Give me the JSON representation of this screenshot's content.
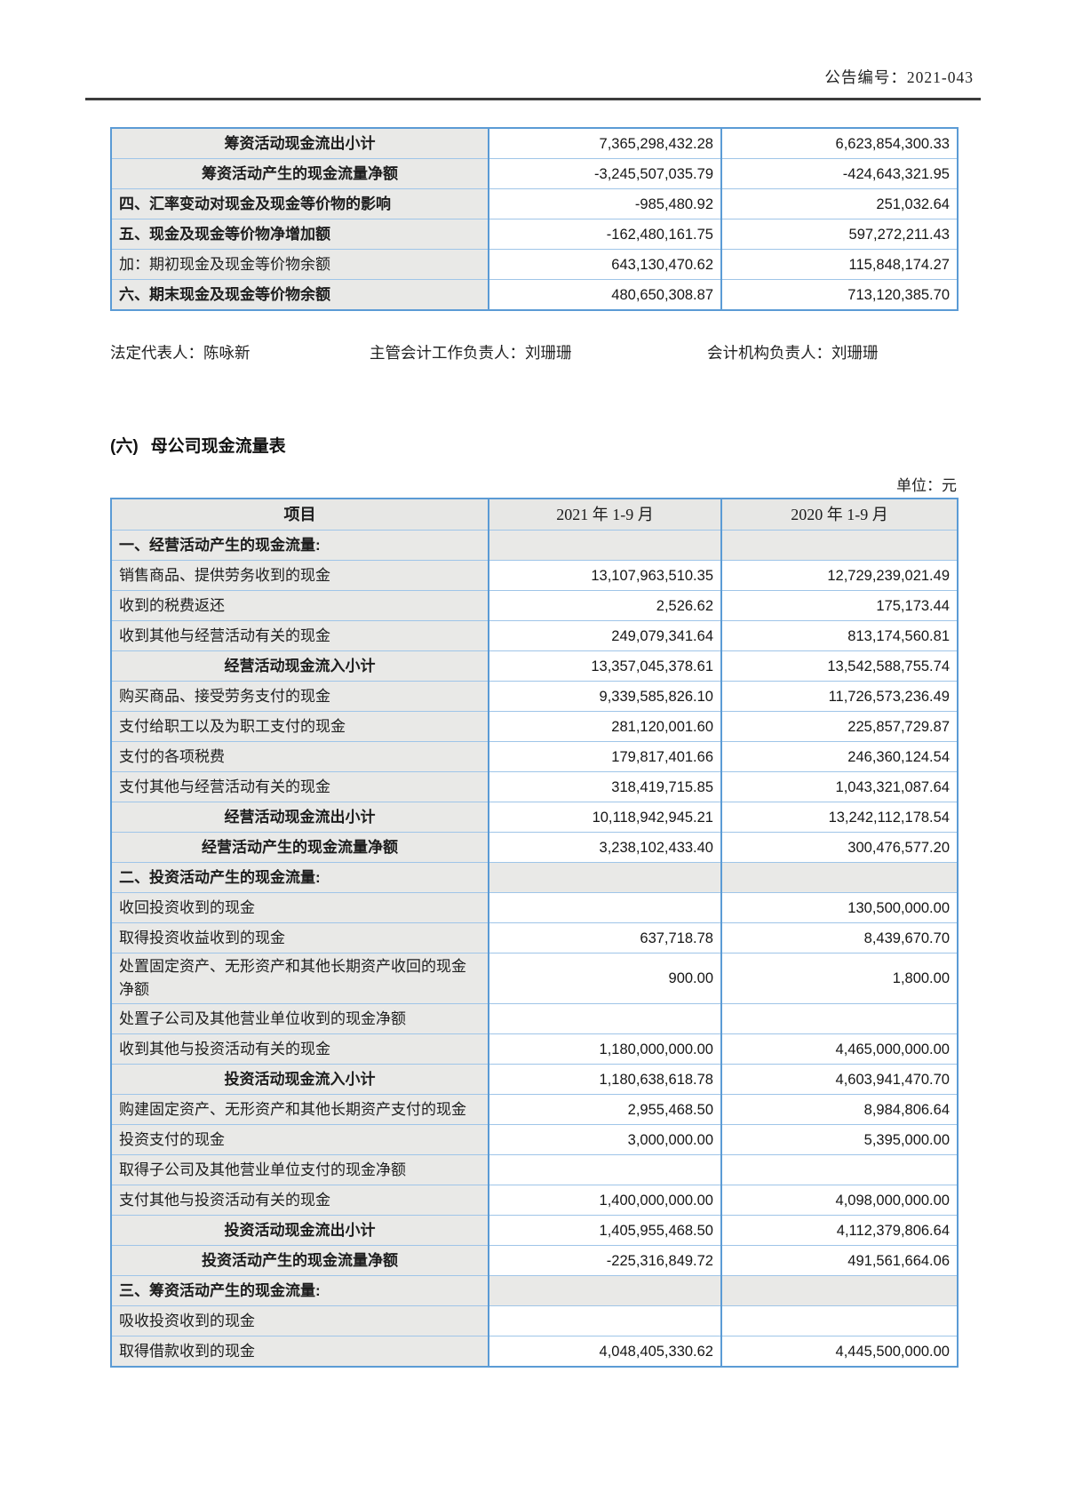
{
  "theme": {
    "border_blue": "#5B9BD5",
    "grid_light_blue": "#9FC5E8",
    "cell_gray": "#E9E9E7",
    "rule_dark": "#3c3c3c"
  },
  "header": {
    "doc_number": "公告编号：2021-043"
  },
  "top_table": {
    "rows": [
      {
        "label": "筹资活动现金流出小计",
        "v2021": "7,365,298,432.28",
        "v2020": "6,623,854,300.33",
        "style": "subtotal"
      },
      {
        "label": "筹资活动产生的现金流量净额",
        "v2021": "-3,245,507,035.79",
        "v2020": "-424,643,321.95",
        "style": "subtotal"
      },
      {
        "label": "四、汇率变动对现金及现金等价物的影响",
        "v2021": "-985,480.92",
        "v2020": "251,032.64",
        "style": "sectionleft"
      },
      {
        "label": "五、现金及现金等价物净增加额",
        "v2021": "-162,480,161.75",
        "v2020": "597,272,211.43",
        "style": "sectionleft"
      },
      {
        "label": "加：期初现金及现金等价物余额",
        "v2021": "643,130,470.62",
        "v2020": "115,848,174.27",
        "style": "item"
      },
      {
        "label": "六、期末现金及现金等价物余额",
        "v2021": "480,650,308.87",
        "v2020": "713,120,385.70",
        "style": "sectionleft"
      }
    ]
  },
  "signatories": {
    "legal_rep": "法定代表人：陈咏新",
    "chief_accounting_officer": "主管会计工作负责人：刘珊珊",
    "accounting_dept_head": "会计机构负责人：刘珊珊"
  },
  "section": {
    "number": "(六)",
    "title": "母公司现金流量表",
    "unit_note": "单位：元"
  },
  "main_table": {
    "headers": [
      "项目",
      "2021 年 1-9 月",
      "2020 年 1-9 月"
    ],
    "rows": [
      {
        "label": "一、经营活动产生的现金流量:",
        "v2021": "",
        "v2020": "",
        "style": "section"
      },
      {
        "label": "销售商品、提供劳务收到的现金",
        "v2021": "13,107,963,510.35",
        "v2020": "12,729,239,021.49",
        "style": "item"
      },
      {
        "label": "收到的税费返还",
        "v2021": "2,526.62",
        "v2020": "175,173.44",
        "style": "item"
      },
      {
        "label": "收到其他与经营活动有关的现金",
        "v2021": "249,079,341.64",
        "v2020": "813,174,560.81",
        "style": "item"
      },
      {
        "label": "经营活动现金流入小计",
        "v2021": "13,357,045,378.61",
        "v2020": "13,542,588,755.74",
        "style": "subtotal"
      },
      {
        "label": "购买商品、接受劳务支付的现金",
        "v2021": "9,339,585,826.10",
        "v2020": "11,726,573,236.49",
        "style": "item"
      },
      {
        "label": "支付给职工以及为职工支付的现金",
        "v2021": "281,120,001.60",
        "v2020": "225,857,729.87",
        "style": "item"
      },
      {
        "label": "支付的各项税费",
        "v2021": "179,817,401.66",
        "v2020": "246,360,124.54",
        "style": "item"
      },
      {
        "label": "支付其他与经营活动有关的现金",
        "v2021": "318,419,715.85",
        "v2020": "1,043,321,087.64",
        "style": "item"
      },
      {
        "label": "经营活动现金流出小计",
        "v2021": "10,118,942,945.21",
        "v2020": "13,242,112,178.54",
        "style": "subtotal"
      },
      {
        "label": "经营活动产生的现金流量净额",
        "v2021": "3,238,102,433.40",
        "v2020": "300,476,577.20",
        "style": "subtotal"
      },
      {
        "label": "二、投资活动产生的现金流量:",
        "v2021": "",
        "v2020": "",
        "style": "section"
      },
      {
        "label": "收回投资收到的现金",
        "v2021": "",
        "v2020": "130,500,000.00",
        "style": "item"
      },
      {
        "label": "取得投资收益收到的现金",
        "v2021": "637,718.78",
        "v2020": "8,439,670.70",
        "style": "item"
      },
      {
        "label": "处置固定资产、无形资产和其他长期资产收回的现金净额",
        "v2021": "900.00",
        "v2020": "1,800.00",
        "style": "item"
      },
      {
        "label": "处置子公司及其他营业单位收到的现金净额",
        "v2021": "",
        "v2020": "",
        "style": "item"
      },
      {
        "label": "收到其他与投资活动有关的现金",
        "v2021": "1,180,000,000.00",
        "v2020": "4,465,000,000.00",
        "style": "item"
      },
      {
        "label": "投资活动现金流入小计",
        "v2021": "1,180,638,618.78",
        "v2020": "4,603,941,470.70",
        "style": "subtotal"
      },
      {
        "label": "购建固定资产、无形资产和其他长期资产支付的现金",
        "v2021": "2,955,468.50",
        "v2020": "8,984,806.64",
        "style": "item"
      },
      {
        "label": "投资支付的现金",
        "v2021": "3,000,000.00",
        "v2020": "5,395,000.00",
        "style": "item"
      },
      {
        "label": "取得子公司及其他营业单位支付的现金净额",
        "v2021": "",
        "v2020": "",
        "style": "item"
      },
      {
        "label": "支付其他与投资活动有关的现金",
        "v2021": "1,400,000,000.00",
        "v2020": "4,098,000,000.00",
        "style": "item"
      },
      {
        "label": "投资活动现金流出小计",
        "v2021": "1,405,955,468.50",
        "v2020": "4,112,379,806.64",
        "style": "subtotal"
      },
      {
        "label": "投资活动产生的现金流量净额",
        "v2021": "-225,316,849.72",
        "v2020": "491,561,664.06",
        "style": "subtotal"
      },
      {
        "label": "三、筹资活动产生的现金流量:",
        "v2021": "",
        "v2020": "",
        "style": "section"
      },
      {
        "label": "吸收投资收到的现金",
        "v2021": "",
        "v2020": "",
        "style": "item"
      },
      {
        "label": "取得借款收到的现金",
        "v2021": "4,048,405,330.62",
        "v2020": "4,445,500,000.00",
        "style": "item"
      }
    ]
  }
}
